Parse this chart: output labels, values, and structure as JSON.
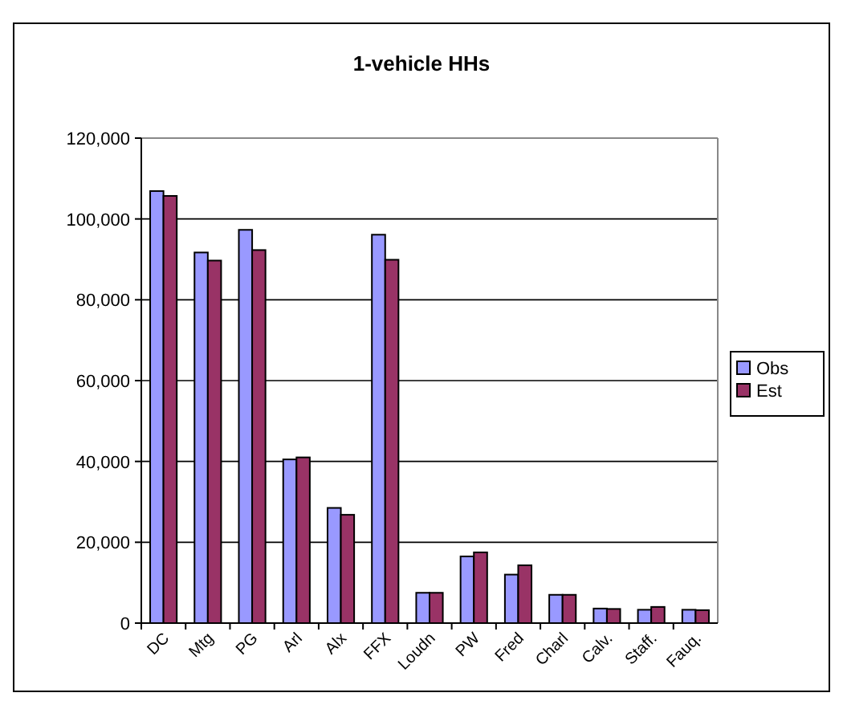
{
  "chart_data": {
    "type": "bar",
    "title": "1-vehicle HHs",
    "categories": [
      "DC",
      "Mtg",
      "PG",
      "Arl",
      "Alx",
      "FFX",
      "Loudn",
      "PW",
      "Fred",
      "Charl",
      "Calv.",
      "Staff.",
      "Fauq."
    ],
    "series": [
      {
        "name": "Obs",
        "color": "#9999ff",
        "values": [
          106900,
          91700,
          97300,
          40500,
          28500,
          96100,
          7500,
          16500,
          12000,
          7000,
          3600,
          3300,
          3300
        ]
      },
      {
        "name": "Est",
        "color": "#993366",
        "values": [
          105700,
          89700,
          92300,
          41000,
          26800,
          89900,
          7500,
          17500,
          14300,
          7000,
          3500,
          4000,
          3200
        ]
      }
    ],
    "ylim": [
      0,
      120000
    ],
    "yticks": [
      {
        "value": 0,
        "label": "0"
      },
      {
        "value": 20000,
        "label": "20,000"
      },
      {
        "value": 40000,
        "label": "40,000"
      },
      {
        "value": 60000,
        "label": "60,000"
      },
      {
        "value": 80000,
        "label": "80,000"
      },
      {
        "value": 100000,
        "label": "100,000"
      },
      {
        "value": 120000,
        "label": "120,000"
      }
    ],
    "grid": "y",
    "legend": "right"
  }
}
